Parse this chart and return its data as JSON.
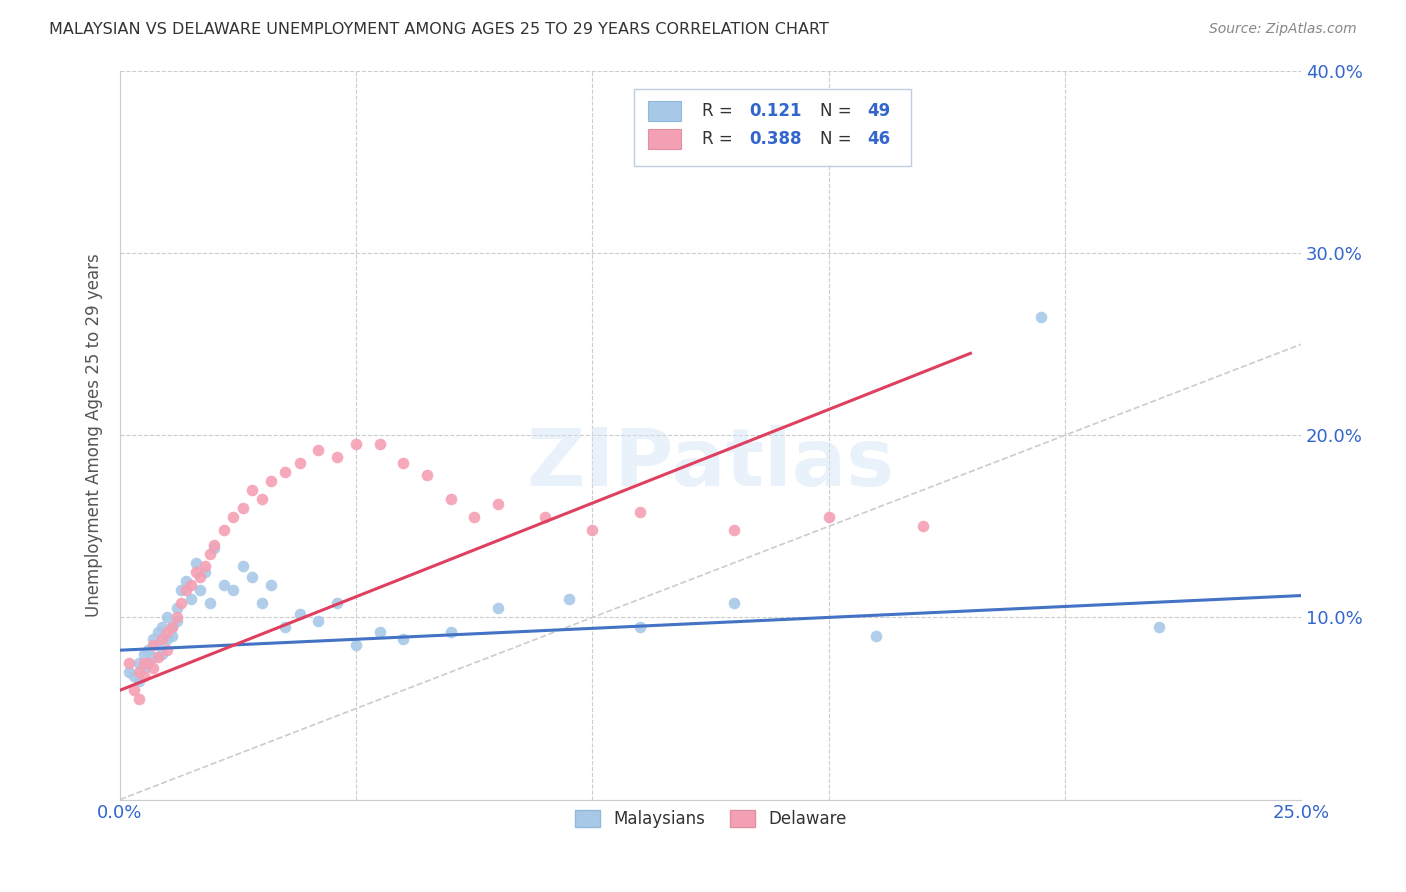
{
  "title": "MALAYSIAN VS DELAWARE UNEMPLOYMENT AMONG AGES 25 TO 29 YEARS CORRELATION CHART",
  "source": "Source: ZipAtlas.com",
  "ylabel": "Unemployment Among Ages 25 to 29 years",
  "watermark": "ZIPatlas",
  "xlim": [
    0,
    0.25
  ],
  "ylim": [
    0,
    0.4
  ],
  "xticks": [
    0.0,
    0.05,
    0.1,
    0.15,
    0.2,
    0.25
  ],
  "yticks": [
    0.0,
    0.1,
    0.2,
    0.3,
    0.4
  ],
  "xtick_labels": [
    "0.0%",
    "",
    "",
    "",
    "",
    "25.0%"
  ],
  "ytick_labels": [
    "",
    "10.0%",
    "20.0%",
    "30.0%",
    "40.0%"
  ],
  "R_malaysian": 0.121,
  "N_malaysian": 49,
  "R_delaware": 0.388,
  "N_delaware": 46,
  "malaysian_color": "#a8c8e8",
  "delaware_color": "#f4a0b4",
  "malaysian_line_color": "#4472c4",
  "delaware_line_color": "#e04060",
  "diagonal_color": "#cccccc",
  "scatter_size": 70,
  "malaysian_x": [
    0.002,
    0.003,
    0.004,
    0.004,
    0.005,
    0.005,
    0.006,
    0.006,
    0.007,
    0.007,
    0.008,
    0.008,
    0.009,
    0.009,
    0.01,
    0.01,
    0.011,
    0.011,
    0.012,
    0.012,
    0.013,
    0.014,
    0.015,
    0.016,
    0.017,
    0.018,
    0.019,
    0.02,
    0.022,
    0.024,
    0.026,
    0.028,
    0.03,
    0.032,
    0.035,
    0.038,
    0.042,
    0.046,
    0.05,
    0.055,
    0.06,
    0.07,
    0.08,
    0.095,
    0.11,
    0.13,
    0.16,
    0.195,
    0.22
  ],
  "malaysian_y": [
    0.07,
    0.068,
    0.075,
    0.065,
    0.072,
    0.08,
    0.075,
    0.082,
    0.078,
    0.088,
    0.085,
    0.092,
    0.08,
    0.095,
    0.088,
    0.1,
    0.09,
    0.095,
    0.105,
    0.098,
    0.115,
    0.12,
    0.11,
    0.13,
    0.115,
    0.125,
    0.108,
    0.138,
    0.118,
    0.115,
    0.128,
    0.122,
    0.108,
    0.118,
    0.095,
    0.102,
    0.098,
    0.108,
    0.085,
    0.092,
    0.088,
    0.092,
    0.105,
    0.11,
    0.095,
    0.108,
    0.09,
    0.265,
    0.095
  ],
  "delaware_x": [
    0.002,
    0.003,
    0.004,
    0.004,
    0.005,
    0.005,
    0.006,
    0.007,
    0.007,
    0.008,
    0.009,
    0.01,
    0.01,
    0.011,
    0.012,
    0.013,
    0.014,
    0.015,
    0.016,
    0.017,
    0.018,
    0.019,
    0.02,
    0.022,
    0.024,
    0.026,
    0.028,
    0.03,
    0.032,
    0.035,
    0.038,
    0.042,
    0.046,
    0.05,
    0.055,
    0.06,
    0.065,
    0.07,
    0.075,
    0.08,
    0.09,
    0.1,
    0.11,
    0.13,
    0.15,
    0.17
  ],
  "delaware_y": [
    0.075,
    0.06,
    0.07,
    0.055,
    0.075,
    0.068,
    0.075,
    0.085,
    0.072,
    0.078,
    0.088,
    0.082,
    0.092,
    0.095,
    0.1,
    0.108,
    0.115,
    0.118,
    0.125,
    0.122,
    0.128,
    0.135,
    0.14,
    0.148,
    0.155,
    0.16,
    0.17,
    0.165,
    0.175,
    0.18,
    0.185,
    0.192,
    0.188,
    0.195,
    0.195,
    0.185,
    0.178,
    0.165,
    0.155,
    0.162,
    0.155,
    0.148,
    0.158,
    0.148,
    0.155,
    0.15
  ],
  "trend_malaysian_x0": 0.0,
  "trend_malaysian_x1": 0.25,
  "trend_malaysian_y0": 0.082,
  "trend_malaysian_y1": 0.112,
  "trend_delaware_x0": 0.0,
  "trend_delaware_x1": 0.18,
  "trend_delaware_y0": 0.06,
  "trend_delaware_y1": 0.245
}
